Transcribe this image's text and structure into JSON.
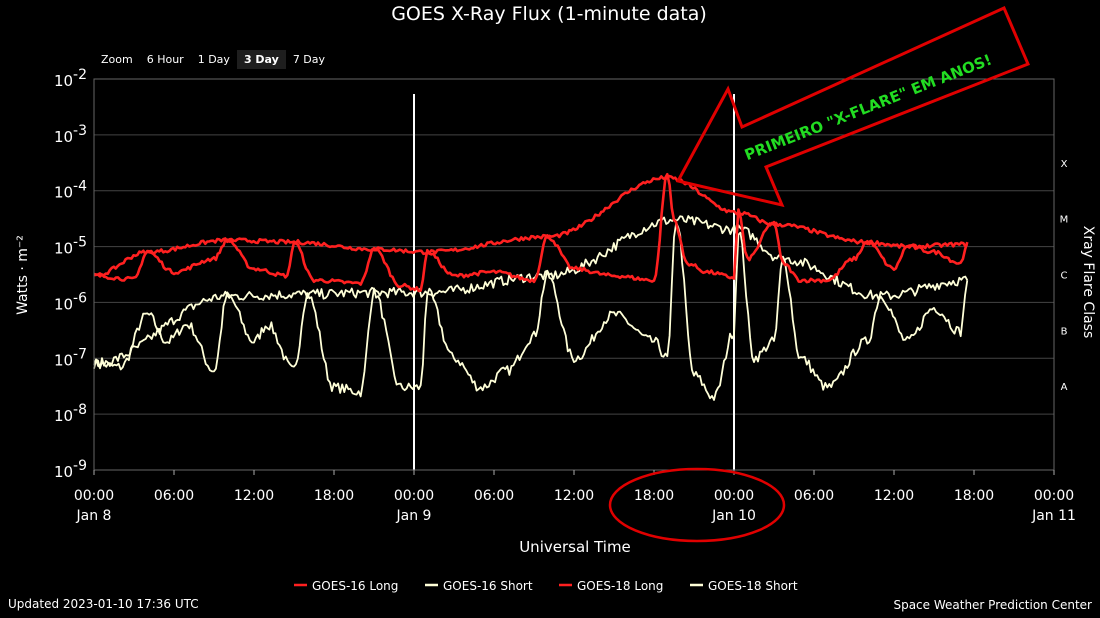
{
  "zoom": {
    "label": "Zoom",
    "options": [
      {
        "label": "6 Hour",
        "active": false
      },
      {
        "label": "1 Day",
        "active": false
      },
      {
        "label": "3 Day",
        "active": true
      },
      {
        "label": "7 Day",
        "active": false
      }
    ]
  },
  "footer": {
    "updated": "Updated 2023-01-10 17:36 UTC",
    "credit": "Space Weather Prediction Center"
  },
  "annotation": {
    "text": "PRIMEIRO \"X-FLARE\" EM ANOS!",
    "arrow_color": "#e00000",
    "text_color": "#22dd22",
    "circle_color": "#e00000"
  },
  "colors": {
    "background": "#000000",
    "grid": "#444444",
    "long": "#ff2020",
    "short": "#ffffd8",
    "day_line": "#ffffff"
  },
  "chart_data": {
    "type": "line",
    "title": "GOES X-Ray Flux (1-minute data)",
    "xlabel": "Universal Time",
    "ylabel": "Watts · m⁻²",
    "ylabel_right": "Xray Flare Class",
    "y_scale": "log",
    "ylim": [
      1e-09,
      0.01
    ],
    "xlim": [
      "2023-01-08 00:00",
      "2023-01-11 00:00"
    ],
    "y_ticks": [
      {
        "base": "10",
        "exp": "-2",
        "value": 0.01
      },
      {
        "base": "10",
        "exp": "-3",
        "value": 0.001
      },
      {
        "base": "10",
        "exp": "-4",
        "value": 0.0001
      },
      {
        "base": "10",
        "exp": "-5",
        "value": 1e-05
      },
      {
        "base": "10",
        "exp": "-6",
        "value": 1e-06
      },
      {
        "base": "10",
        "exp": "-7",
        "value": 1e-07
      },
      {
        "base": "10",
        "exp": "-8",
        "value": 1e-08
      },
      {
        "base": "10",
        "exp": "-9",
        "value": 1e-09
      }
    ],
    "flare_classes": [
      {
        "label": "X",
        "value": 0.0001
      },
      {
        "label": "M",
        "value": 1e-05
      },
      {
        "label": "C",
        "value": 1e-06
      },
      {
        "label": "B",
        "value": 1e-07
      },
      {
        "label": "A",
        "value": 1e-08
      }
    ],
    "x_ticks": [
      {
        "time": "2023-01-08 00:00",
        "label": "00:00",
        "date": "Jan 8"
      },
      {
        "time": "2023-01-08 06:00",
        "label": "06:00",
        "date": ""
      },
      {
        "time": "2023-01-08 12:00",
        "label": "12:00",
        "date": ""
      },
      {
        "time": "2023-01-08 18:00",
        "label": "18:00",
        "date": ""
      },
      {
        "time": "2023-01-09 00:00",
        "label": "00:00",
        "date": "Jan 9"
      },
      {
        "time": "2023-01-09 06:00",
        "label": "06:00",
        "date": ""
      },
      {
        "time": "2023-01-09 12:00",
        "label": "12:00",
        "date": ""
      },
      {
        "time": "2023-01-09 18:00",
        "label": "18:00",
        "date": ""
      },
      {
        "time": "2023-01-10 00:00",
        "label": "00:00",
        "date": "Jan 10"
      },
      {
        "time": "2023-01-10 06:00",
        "label": "06:00",
        "date": ""
      },
      {
        "time": "2023-01-10 12:00",
        "label": "12:00",
        "date": ""
      },
      {
        "time": "2023-01-10 18:00",
        "label": "18:00",
        "date": ""
      },
      {
        "time": "2023-01-11 00:00",
        "label": "00:00",
        "date": "Jan 11"
      }
    ],
    "day_boundaries": [
      "2023-01-09 00:00",
      "2023-01-10 00:00"
    ],
    "highlight_circle_center": "2023-01-09 21:00",
    "series": [
      {
        "name": "GOES-16 Long",
        "color": "#ff2020",
        "x": [
          "2023-01-08 00:00",
          "2023-01-08 03:00",
          "2023-01-08 04:00",
          "2023-01-08 06:00",
          "2023-01-08 09:00",
          "2023-01-08 10:00",
          "2023-01-08 12:00",
          "2023-01-08 14:30",
          "2023-01-08 15:00",
          "2023-01-08 16:30",
          "2023-01-08 20:00",
          "2023-01-08 21:00",
          "2023-01-08 23:00",
          "2023-01-09 00:30",
          "2023-01-09 01:00",
          "2023-01-09 03:00",
          "2023-01-09 06:00",
          "2023-01-09 09:00",
          "2023-01-09 10:00",
          "2023-01-09 12:00",
          "2023-01-09 15:00",
          "2023-01-09 18:00",
          "2023-01-09 19:00",
          "2023-01-09 19:30",
          "2023-01-09 20:30",
          "2023-01-09 22:00",
          "2023-01-10 00:00",
          "2023-01-10 00:20",
          "2023-01-10 01:00",
          "2023-01-10 03:00",
          "2023-01-10 03:40",
          "2023-01-10 05:00",
          "2023-01-10 07:00",
          "2023-01-10 09:00",
          "2023-01-10 10:00",
          "2023-01-10 12:00",
          "2023-01-10 13:00",
          "2023-01-10 15:00",
          "2023-01-10 17:00",
          "2023-01-10 17:30"
        ],
        "values": [
          3e-06,
          2.6e-06,
          8e-06,
          3.5e-06,
          6e-06,
          1.3e-05,
          4e-06,
          3e-06,
          1.2e-05,
          2.5e-06,
          2.2e-06,
          9e-06,
          2e-06,
          1.7e-06,
          8e-06,
          3e-06,
          3.5e-06,
          2.5e-06,
          1.5e-05,
          4e-06,
          3e-06,
          2.5e-06,
          0.0002,
          3e-05,
          5e-06,
          3.5e-06,
          2.8e-06,
          4.5e-05,
          6e-06,
          2.7e-05,
          5e-06,
          2.5e-06,
          2.5e-06,
          6e-06,
          1.2e-05,
          4e-06,
          1e-05,
          8e-06,
          5e-06,
          1.2e-05
        ]
      },
      {
        "name": "GOES-16 Short",
        "color": "#ffffd8",
        "x": [
          "2023-01-08 00:00",
          "2023-01-08 02:00",
          "2023-01-08 04:00",
          "2023-01-08 05:30",
          "2023-01-08 07:00",
          "2023-01-08 09:00",
          "2023-01-08 10:00",
          "2023-01-08 12:00",
          "2023-01-08 13:00",
          "2023-01-08 15:00",
          "2023-01-08 16:00",
          "2023-01-08 18:00",
          "2023-01-08 20:00",
          "2023-01-08 21:00",
          "2023-01-08 23:00",
          "2023-01-09 00:30",
          "2023-01-09 01:00",
          "2023-01-09 03:00",
          "2023-01-09 05:00",
          "2023-01-09 07:00",
          "2023-01-09 09:00",
          "2023-01-09 10:00",
          "2023-01-09 12:00",
          "2023-01-09 15:00",
          "2023-01-09 18:00",
          "2023-01-09 19:00",
          "2023-01-09 19:40",
          "2023-01-09 21:00",
          "2023-01-09 22:30",
          "2023-01-10 00:00",
          "2023-01-10 00:20",
          "2023-01-10 01:30",
          "2023-01-10 03:00",
          "2023-01-10 03:40",
          "2023-01-10 05:00",
          "2023-01-10 07:00",
          "2023-01-10 10:00",
          "2023-01-10 11:00",
          "2023-01-10 13:00",
          "2023-01-10 15:00",
          "2023-01-10 17:00",
          "2023-01-10 17:30"
        ],
        "values": [
          8e-08,
          7e-08,
          6e-07,
          2e-07,
          4e-07,
          6e-08,
          1.3e-06,
          2e-07,
          4e-07,
          6e-08,
          1.4e-06,
          3e-08,
          2.5e-08,
          1.5e-06,
          3e-08,
          3e-08,
          1.5e-06,
          1e-07,
          3e-08,
          6e-08,
          2.5e-07,
          3e-06,
          1e-07,
          6e-07,
          2e-07,
          1e-07,
          3e-05,
          5e-08,
          2e-08,
          3e-07,
          2e-05,
          1e-07,
          2e-07,
          6e-06,
          1e-07,
          3e-08,
          2e-07,
          1.3e-06,
          2e-07,
          8e-07,
          3e-07,
          2.5e-06
        ]
      },
      {
        "name": "GOES-18 Long",
        "color": "#ff2020",
        "x": [
          "2023-01-08 00:00",
          "2023-01-08 04:00",
          "2023-01-08 10:00",
          "2023-01-08 15:00",
          "2023-01-08 21:00",
          "2023-01-09 01:00",
          "2023-01-09 10:00",
          "2023-01-09 19:00",
          "2023-01-10 00:20",
          "2023-01-10 03:00",
          "2023-01-10 10:00",
          "2023-01-10 13:00",
          "2023-01-10 17:30"
        ],
        "values": [
          3e-06,
          8e-06,
          1.3e-05,
          1.2e-05,
          9e-06,
          8e-06,
          1.5e-05,
          0.00017,
          4e-05,
          2.5e-05,
          1.2e-05,
          1e-05,
          1.1e-05
        ]
      },
      {
        "name": "GOES-18 Short",
        "color": "#ffffd8",
        "x": [
          "2023-01-08 00:00",
          "2023-01-08 10:00",
          "2023-01-08 16:00",
          "2023-01-08 21:00",
          "2023-01-09 01:00",
          "2023-01-09 10:00",
          "2023-01-09 19:40",
          "2023-01-10 00:20",
          "2023-01-10 03:40",
          "2023-01-10 11:00",
          "2023-01-10 17:30"
        ],
        "values": [
          8e-08,
          1.3e-06,
          1.4e-06,
          1.5e-06,
          1.5e-06,
          3e-06,
          3e-05,
          2e-05,
          6e-06,
          1.3e-06,
          2.5e-06
        ]
      }
    ]
  }
}
